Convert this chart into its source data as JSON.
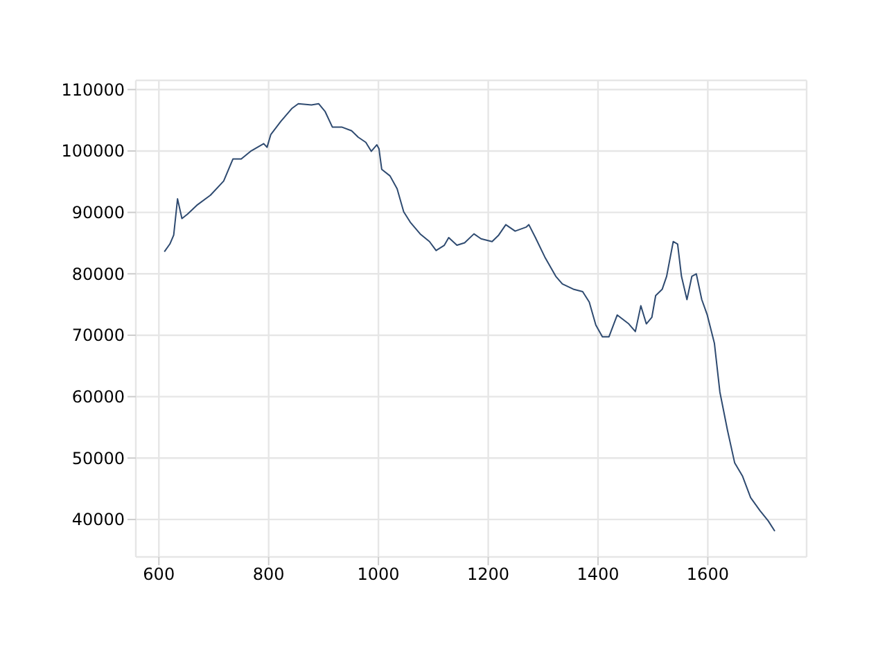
{
  "chart_data": {
    "type": "line",
    "x": [
      610,
      620,
      627,
      634,
      642,
      652,
      669,
      694,
      718,
      735,
      750,
      767,
      791,
      797,
      804,
      822,
      842,
      854,
      878,
      891,
      903,
      916,
      933,
      951,
      963,
      977,
      987,
      997,
      1001,
      1006,
      1021,
      1034,
      1046,
      1058,
      1076,
      1093,
      1105,
      1120,
      1128,
      1143,
      1157,
      1174,
      1187,
      1207,
      1219,
      1232,
      1249,
      1269,
      1274,
      1286,
      1303,
      1323,
      1335,
      1355,
      1372,
      1384,
      1396,
      1408,
      1420,
      1435,
      1456,
      1468,
      1478,
      1488,
      1498,
      1505,
      1517,
      1525,
      1537,
      1545,
      1552,
      1562,
      1571,
      1579,
      1589,
      1599,
      1612,
      1622,
      1636,
      1649,
      1663,
      1678,
      1695,
      1710,
      1722
    ],
    "series": [
      {
        "color": "#2e4a70",
        "values": [
          83590,
          84850,
          86300,
          92200,
          89000,
          89700,
          91150,
          92800,
          95100,
          98700,
          98700,
          99950,
          101200,
          100600,
          102700,
          104800,
          106900,
          107700,
          107500,
          107700,
          106400,
          103900,
          103900,
          103300,
          102250,
          101400,
          99950,
          101000,
          100350,
          97000,
          95950,
          93850,
          90100,
          88400,
          86500,
          85250,
          83800,
          84650,
          85900,
          84650,
          85050,
          86500,
          85700,
          85250,
          86300,
          88000,
          86950,
          87600,
          88000,
          85900,
          82750,
          79600,
          78350,
          77500,
          77100,
          75400,
          71650,
          69750,
          69750,
          73300,
          71850,
          70600,
          74800,
          71850,
          72900,
          76450,
          77500,
          79600,
          85250,
          84850,
          79600,
          75800,
          79600,
          80000,
          75800,
          73300,
          68700,
          60750,
          54450,
          49200,
          47100,
          43550,
          41450,
          39780,
          38100
        ]
      }
    ],
    "xlim": [
      558,
      1780
    ],
    "xticks": [
      600,
      800,
      1000,
      1200,
      1400,
      1600
    ],
    "ylim": [
      33900,
      111500
    ],
    "yticks": [
      40000,
      50000,
      60000,
      70000,
      80000,
      90000,
      100000,
      110000
    ],
    "grid": true,
    "legend": false,
    "marker": "none",
    "line_style": "solid"
  }
}
